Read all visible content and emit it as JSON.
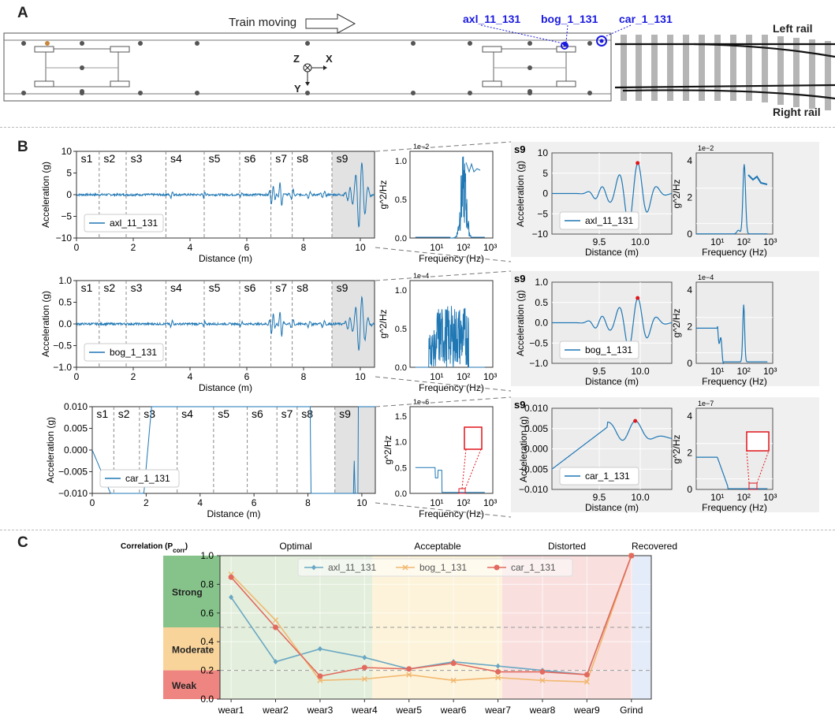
{
  "panels": {
    "a": "A",
    "b": "B",
    "c": "C"
  },
  "panelA": {
    "train_moving": "Train moving",
    "sensors": [
      "axl_11_131",
      "bog_1_131",
      "car_1_131"
    ],
    "axis_z": "Z",
    "axis_x": "X",
    "axis_y": "Y",
    "left_rail": "Left rail",
    "right_rail": "Right rail",
    "colors": {
      "sensor": "#1a1adf",
      "sleeper": "#b5b5b5",
      "rail": "#111111"
    }
  },
  "panelB": {
    "section_labels": [
      "s1",
      "s2",
      "s3",
      "s4",
      "s5",
      "s6",
      "s7",
      "s8",
      "s9"
    ],
    "section_boundaries_m": [
      0.8,
      1.75,
      3.15,
      4.5,
      5.75,
      6.85,
      7.6,
      9.0
    ],
    "series_color": "#1f77b4",
    "peak_color": "#e0151b",
    "shade_color": "#e2e2e2",
    "xlabel_dist": "Distance (m)",
    "ylabel_acc": "Acceleration (g)",
    "xlabel_freq": "Frequency (Hz)",
    "ylabel_psd": "g^2/Hz",
    "zoom_label": "s9",
    "rows": [
      {
        "name": "axl_11_131",
        "ylim": [
          -10,
          10
        ],
        "yticks": [
          "10",
          "5",
          "0",
          "−5",
          "−10"
        ],
        "xticks": [
          "0",
          "2",
          "4",
          "6",
          "8",
          "10"
        ],
        "psd_exp": "1e−2",
        "psd_yticks": [
          "1.0",
          "0.5",
          "0.0"
        ],
        "zoom_exp": "1e−2",
        "zoom_psd_yticks": [
          "4",
          "2",
          "0"
        ],
        "zoom_yticks": [
          "10",
          "5",
          "0",
          "−5",
          "−10"
        ],
        "zoom_xticks": [
          "9.5",
          "10.0"
        ],
        "freq_ticks": [
          "10¹",
          "10²",
          "10³"
        ]
      },
      {
        "name": "bog_1_131",
        "ylim": [
          -1,
          1
        ],
        "yticks": [
          "1.0",
          "0.5",
          "0.0",
          "−0.5",
          "−1.0"
        ],
        "xticks": [
          "0",
          "2",
          "4",
          "6",
          "8",
          "10"
        ],
        "psd_exp": "1e−4",
        "psd_yticks": [
          "1.0",
          "0.5",
          "0.0"
        ],
        "zoom_exp": "1e−4",
        "zoom_psd_yticks": [
          "4",
          "2",
          "0"
        ],
        "zoom_yticks": [
          "1.0",
          "0.5",
          "0.0",
          "−0.5",
          "−1.0"
        ],
        "zoom_xticks": [
          "9.5",
          "10.0"
        ],
        "freq_ticks": [
          "10¹",
          "10²",
          "10³"
        ]
      },
      {
        "name": "car_1_131",
        "ylim": [
          -0.01,
          0.01
        ],
        "yticks": [
          "0.010",
          "0.005",
          "0.000",
          "−0.005",
          "−0.010"
        ],
        "xticks": [
          "0",
          "2",
          "4",
          "6",
          "8",
          "10"
        ],
        "psd_exp": "1e−6",
        "psd_yticks": [
          "1.5",
          "1.0",
          "0.5",
          "0.0"
        ],
        "zoom_exp": "1e−7",
        "zoom_psd_yticks": [
          "4",
          "2",
          "0"
        ],
        "zoom_yticks": [
          "0.010",
          "0.005",
          "0.000",
          "−0.005",
          "−0.010"
        ],
        "zoom_xticks": [
          "9.5",
          "10.0"
        ],
        "freq_ticks": [
          "10¹",
          "10²",
          "10³"
        ]
      }
    ]
  },
  "chart_data": {
    "type": "line",
    "title": "",
    "ylabel": "Correlation (P",
    "ylabel_sub": "corr",
    "ylabel_close": ")",
    "categories": [
      "wear1",
      "wear2",
      "wear3",
      "wear4",
      "wear5",
      "wear6",
      "wear7",
      "wear8",
      "wear9",
      "Grind"
    ],
    "ylim": [
      0.0,
      1.0
    ],
    "yticks": [
      "0.0",
      "0.2",
      "0.4",
      "0.6",
      "0.8",
      "1.0"
    ],
    "thresholds": [
      0.2,
      0.5
    ],
    "phases": [
      {
        "label": "Optimal",
        "from": 0,
        "to": 4,
        "color": "#e3efdc"
      },
      {
        "label": "Acceptable",
        "from": 4,
        "to": 7,
        "color": "#fdf3da"
      },
      {
        "label": "Distorted",
        "from": 7,
        "to": 9,
        "color": "#f9e0df"
      },
      {
        "label": "Recovered",
        "from": 9,
        "to": 9.6,
        "color": "#e4ecfa"
      }
    ],
    "strength_bands": [
      {
        "label": "Strong",
        "from": 0.5,
        "to": 1.0,
        "color": "#86c38a"
      },
      {
        "label": "Moderate",
        "from": 0.2,
        "to": 0.5,
        "color": "#f8d49a"
      },
      {
        "label": "Weak",
        "from": 0.0,
        "to": 0.2,
        "color": "#ee8580"
      }
    ],
    "series": [
      {
        "name": "axl_11_131",
        "color": "#6aa7c4",
        "marker": "diamond",
        "values": [
          0.71,
          0.26,
          0.35,
          0.29,
          0.21,
          0.26,
          0.23,
          0.2,
          0.17,
          1.0
        ]
      },
      {
        "name": "bog_1_131",
        "color": "#f2b870",
        "marker": "x",
        "values": [
          0.87,
          0.55,
          0.13,
          0.14,
          0.17,
          0.13,
          0.15,
          0.13,
          0.12,
          1.0
        ]
      },
      {
        "name": "car_1_131",
        "color": "#e26a5e",
        "marker": "circle",
        "values": [
          0.85,
          0.5,
          0.16,
          0.22,
          0.21,
          0.25,
          0.19,
          0.19,
          0.17,
          1.0
        ]
      }
    ]
  }
}
